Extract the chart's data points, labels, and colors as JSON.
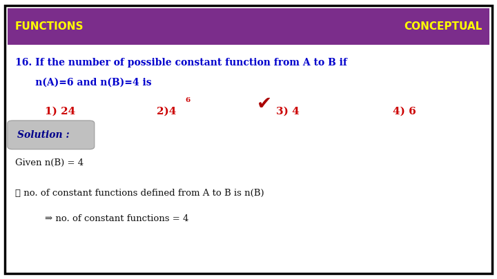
{
  "bg_color": "#ffffff",
  "border_color": "#000000",
  "header_bg": "#7b2d8b",
  "header_text_left": "FUNCTIONS",
  "header_text_right": "CONCEPTUAL",
  "header_text_color": "#ffff00",
  "question_color": "#0000cc",
  "question_line1": "16. If the number of possible constant function from A to B if",
  "question_line2": "      n(A)=6 and n(B)=4 is",
  "options_color": "#cc0000",
  "opt1": "1) 24",
  "opt2": "2)4",
  "opt2_sup": "6",
  "opt3": "3) 4",
  "opt4": "4) 6",
  "checkmark_color": "#aa0000",
  "solution_bg": "#c0c0c0",
  "solution_text": "Solution :",
  "solution_text_color": "#00008b",
  "body_color": "#111111",
  "given_text": "Given n(B) = 4",
  "therefore_text": "∴ no. of constant functions defined from A to B is n(B)",
  "implies_text": "⇒ no. of constant functions = 4",
  "font_size_header": 11,
  "font_size_question": 10,
  "font_size_options": 11,
  "font_size_body": 9.5,
  "font_size_solution": 10
}
